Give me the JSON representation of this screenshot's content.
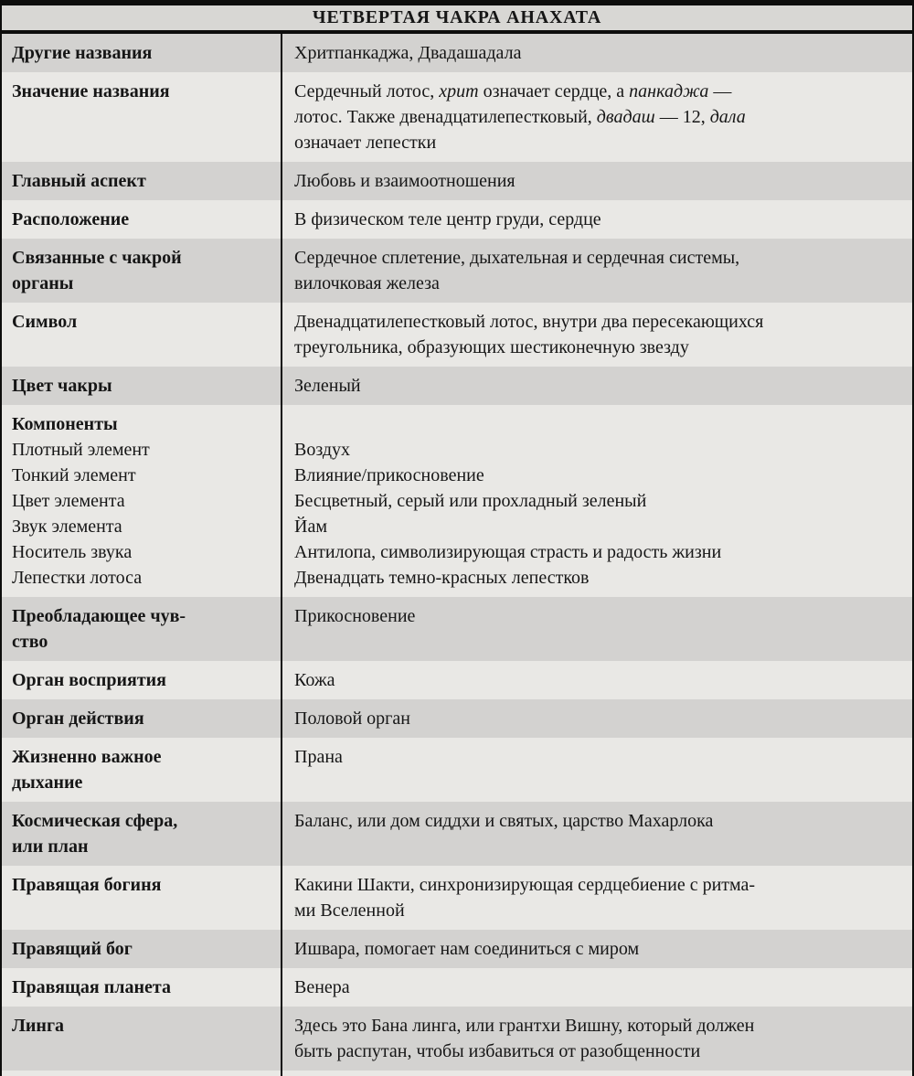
{
  "header": {
    "title": "ЧЕТВЕРТАЯ ЧАКРА АНАХАТА"
  },
  "colors": {
    "row_dark": "#d3d2d0",
    "row_light": "#e9e8e5",
    "header_bg": "#d8d7d4",
    "bar": "#0d0d0c",
    "text": "#161616"
  },
  "table": {
    "rows": [
      {
        "type": "simple",
        "shade": "dark",
        "label": "Другие названия",
        "value": "Хритпанкаджа, Двадашадала"
      },
      {
        "type": "rich",
        "shade": "light",
        "label": "Значение названия",
        "value_segments": [
          {
            "t": "Сердечный лотос, "
          },
          {
            "t": "хрит",
            "i": true
          },
          {
            "t": " означает сердце, а "
          },
          {
            "t": "панкаджа",
            "i": true
          },
          {
            "t": " —\nлотос. Также двенадцатилепестковый, "
          },
          {
            "t": "двадаш",
            "i": true
          },
          {
            "t": " — 12, "
          },
          {
            "t": "дала",
            "i": true
          },
          {
            "t": "\nозначает лепестки"
          }
        ]
      },
      {
        "type": "simple",
        "shade": "dark",
        "label": "Главный аспект",
        "value": "Любовь и взаимоотношения"
      },
      {
        "type": "simple",
        "shade": "light",
        "label": "Расположение",
        "value": "В физическом теле центр груди, сердце"
      },
      {
        "type": "simple",
        "shade": "dark",
        "label": "Связанные с чакрой\nорганы",
        "value": "Сердечное сплетение, дыхательная и сердечная системы,\nвилочковая железа"
      },
      {
        "type": "simple",
        "shade": "light",
        "label": "Символ",
        "value": "Двенадцатилепестковый лотос, внутри два пересекающихся\nтреугольника, образующих шестиконечную звезду"
      },
      {
        "type": "simple",
        "shade": "dark",
        "label": "Цвет чакры",
        "value": "Зеленый"
      },
      {
        "type": "components",
        "shade": "light",
        "heading": "Компоненты",
        "items": [
          {
            "label": "Плотный элемент",
            "value": "Воздух"
          },
          {
            "label": "Тонкий элемент",
            "value": "Влияние/прикосновение"
          },
          {
            "label": "Цвет элемента",
            "value": "Бесцветный, серый или прохладный зеленый"
          },
          {
            "label": "Звук элемента",
            "value": "Йам"
          },
          {
            "label": "Носитель звука",
            "value": "Антилопа, символизирующая страсть и радость жизни"
          },
          {
            "label": "Лепестки лотоса",
            "value": "Двенадцать темно-красных лепестков"
          }
        ]
      },
      {
        "type": "simple",
        "shade": "dark",
        "label": "Преобладающее чув-\nство",
        "value": "Прикосновение"
      },
      {
        "type": "simple",
        "shade": "light",
        "label": "Орган восприятия",
        "value": "Кожа"
      },
      {
        "type": "simple",
        "shade": "dark",
        "label": "Орган действия",
        "value": "Половой орган"
      },
      {
        "type": "simple",
        "shade": "light",
        "label": "Жизненно важное\nдыхание",
        "value": "Прана"
      },
      {
        "type": "simple",
        "shade": "dark",
        "label": "Космическая сфера,\nили план",
        "value": "Баланс, или дом сиддхи и святых, царство Махарлока"
      },
      {
        "type": "simple",
        "shade": "light",
        "label": "Правящая богиня",
        "value": "Какини Шакти, синхронизирующая сердцебиение с ритма-\nми Вселенной"
      },
      {
        "type": "simple",
        "shade": "dark",
        "label": "Правящий бог",
        "value": "Ишвара, помогает нам соединиться с миром"
      },
      {
        "type": "simple",
        "shade": "light",
        "label": "Правящая планета",
        "value": "Венера"
      },
      {
        "type": "simple",
        "shade": "dark",
        "label": "Линга",
        "value": "Здесь это Бана линга, или грантхи Вишну, который должен\nбыть распутан, чтобы избавиться от разобщенности"
      }
    ]
  }
}
